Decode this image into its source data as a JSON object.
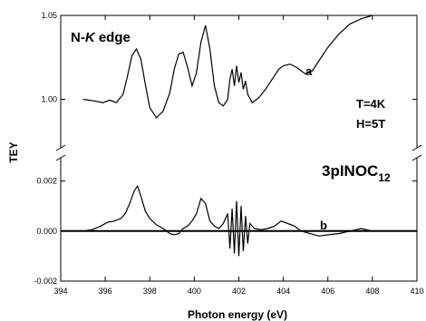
{
  "chart_data": {
    "type": "line",
    "xlabel": "Photon energy  (eV)",
    "ylabel": "TEY",
    "x_axis": {
      "range": [
        394,
        410
      ],
      "ticks": [
        394,
        396,
        398,
        400,
        402,
        404,
        406,
        408,
        410
      ]
    },
    "upper_panel": {
      "y_range": [
        0.97,
        1.05
      ],
      "y_ticks": [
        1.0,
        1.05
      ],
      "y_tick_labels": [
        "1.00",
        "1.05"
      ]
    },
    "lower_panel": {
      "y_range": [
        -0.002,
        0.003
      ],
      "y_ticks": [
        -0.002,
        0.0,
        0.002
      ],
      "y_tick_labels": [
        "-0.002",
        "0.000",
        "0.002"
      ]
    },
    "annotations": {
      "edge_prefix": "N-",
      "edge_italic": "K",
      "edge_suffix": " edge",
      "temperature": "T=4K",
      "field": "H=5T",
      "compound_main": "3pINOC",
      "compound_sub": "12"
    },
    "series": [
      {
        "name": "a",
        "panel": "upper",
        "x": [
          395.0,
          395.5,
          395.9,
          396.2,
          396.5,
          396.8,
          397.0,
          397.2,
          397.4,
          397.6,
          397.8,
          398.0,
          398.3,
          398.6,
          398.9,
          399.1,
          399.3,
          399.5,
          399.7,
          399.9,
          400.1,
          400.3,
          400.5,
          400.7,
          400.9,
          401.1,
          401.3,
          401.5,
          401.6,
          401.7,
          401.8,
          401.9,
          402.0,
          402.1,
          402.2,
          402.3,
          402.4,
          402.6,
          402.9,
          403.2,
          403.5,
          403.8,
          404.0,
          404.3,
          404.6,
          405.0,
          405.3,
          405.6,
          406.0,
          406.5,
          407.0,
          407.5,
          408.0
        ],
        "y": [
          1.0,
          0.999,
          0.998,
          0.9995,
          0.998,
          1.003,
          1.014,
          1.026,
          1.03,
          1.024,
          1.009,
          0.995,
          0.989,
          0.993,
          1.004,
          1.018,
          1.027,
          1.028,
          1.019,
          1.008,
          1.016,
          1.034,
          1.044,
          1.03,
          1.008,
          0.998,
          0.996,
          1.0,
          1.012,
          1.018,
          1.008,
          1.02,
          1.01,
          1.016,
          1.006,
          1.011,
          1.003,
          0.998,
          1.001,
          1.006,
          1.012,
          1.018,
          1.02,
          1.021,
          1.019,
          1.015,
          1.017,
          1.023,
          1.031,
          1.039,
          1.045,
          1.048,
          1.05
        ]
      },
      {
        "name": "b",
        "panel": "lower",
        "x": [
          395.0,
          395.4,
          395.8,
          396.1,
          396.4,
          396.7,
          396.9,
          397.1,
          397.3,
          397.45,
          397.6,
          397.8,
          398.0,
          398.3,
          398.6,
          398.9,
          399.1,
          399.3,
          399.5,
          399.7,
          399.9,
          400.1,
          400.3,
          400.5,
          400.7,
          400.9,
          401.1,
          401.3,
          401.5,
          401.6,
          401.7,
          401.8,
          401.9,
          402.0,
          402.1,
          402.2,
          402.3,
          402.4,
          402.5,
          402.7,
          403.0,
          403.3,
          403.6,
          403.9,
          404.2,
          404.5,
          404.8,
          405.2,
          405.6,
          406.0,
          406.5,
          407.0,
          407.5,
          408.0
        ],
        "y": [
          0.0,
          5e-05,
          0.0002,
          0.00035,
          0.0004,
          0.0005,
          0.0007,
          0.0011,
          0.0016,
          0.0018,
          0.0014,
          0.0008,
          0.0005,
          0.00025,
          0.0001,
          -0.0001,
          -0.00015,
          -0.0001,
          0.0001,
          0.0002,
          0.0004,
          0.0007,
          0.0013,
          0.0011,
          0.0004,
          0.0002,
          0.0001,
          0.0003,
          0.0007,
          -0.0007,
          0.0009,
          -0.0009,
          0.0012,
          -0.001,
          0.001,
          -0.0008,
          0.0006,
          -0.0005,
          0.0003,
          0.0001,
          5e-05,
          0.0001,
          0.0002,
          0.0004,
          0.0003,
          0.0002,
          0.0,
          -0.0001,
          -0.0002,
          -0.00015,
          -0.0001,
          0.0,
          0.0001,
          0.0
        ]
      }
    ]
  }
}
